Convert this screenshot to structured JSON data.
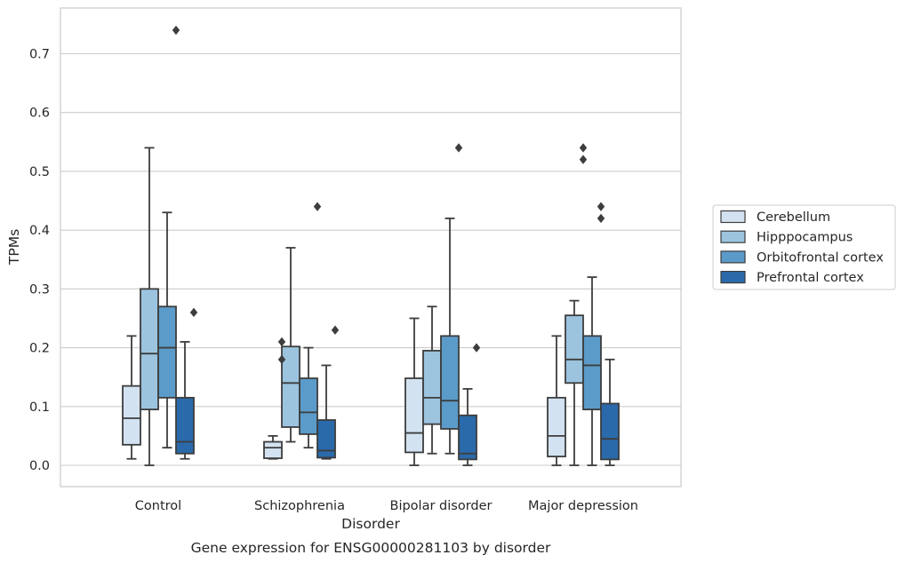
{
  "chart_data": {
    "type": "box",
    "title": "",
    "caption": "Gene expression for ENSG00000281103 by disorder",
    "xlabel": "Disorder",
    "ylabel": "TPMs",
    "ylim": [
      -0.035,
      0.775
    ],
    "yticks": [
      0.0,
      0.1,
      0.2,
      0.3,
      0.4,
      0.5,
      0.6,
      0.7
    ],
    "ytick_labels": [
      "0.0",
      "0.1",
      "0.2",
      "0.3",
      "0.4",
      "0.5",
      "0.6",
      "0.7"
    ],
    "grid": true,
    "legend_position": "right",
    "categories": [
      "Control",
      "Schizophrenia",
      "Bipolar disorder",
      "Major depression"
    ],
    "series": [
      {
        "name": "Cerebellum",
        "color": "#d3e2f1",
        "boxes": [
          {
            "whislo": 0.011,
            "q1": 0.035,
            "med": 0.08,
            "q3": 0.135,
            "whishi": 0.22,
            "fliers": []
          },
          {
            "whislo": 0.011,
            "q1": 0.012,
            "med": 0.03,
            "q3": 0.04,
            "whishi": 0.05,
            "fliers": []
          },
          {
            "whislo": 0.0,
            "q1": 0.022,
            "med": 0.055,
            "q3": 0.148,
            "whishi": 0.25,
            "fliers": []
          },
          {
            "whislo": 0.0,
            "q1": 0.015,
            "med": 0.05,
            "q3": 0.115,
            "whishi": 0.22,
            "fliers": []
          }
        ]
      },
      {
        "name": "Hipppocampus",
        "color": "#9cc4df",
        "boxes": [
          {
            "whislo": 0.0,
            "q1": 0.095,
            "med": 0.19,
            "q3": 0.3,
            "whishi": 0.54,
            "fliers": []
          },
          {
            "whislo": 0.04,
            "q1": 0.065,
            "med": 0.14,
            "q3": 0.202,
            "whishi": 0.37,
            "fliers": []
          },
          {
            "whislo": 0.02,
            "q1": 0.07,
            "med": 0.115,
            "q3": 0.195,
            "whishi": 0.27,
            "fliers": []
          },
          {
            "whislo": 0.0,
            "q1": 0.14,
            "med": 0.18,
            "q3": 0.255,
            "whishi": 0.28,
            "fliers": []
          }
        ]
      },
      {
        "name": "Orbitofrontal cortex",
        "color": "#5b9bc9",
        "boxes": [
          {
            "whislo": 0.03,
            "q1": 0.115,
            "med": 0.2,
            "q3": 0.27,
            "whishi": 0.43,
            "fliers": [
              0.74
            ]
          },
          {
            "whislo": 0.03,
            "q1": 0.053,
            "med": 0.09,
            "q3": 0.148,
            "whishi": 0.2,
            "fliers": [
              0.44
            ]
          },
          {
            "whislo": 0.02,
            "q1": 0.062,
            "med": 0.11,
            "q3": 0.22,
            "whishi": 0.42,
            "fliers": [
              0.54
            ]
          },
          {
            "whislo": 0.0,
            "q1": 0.095,
            "med": 0.17,
            "q3": 0.22,
            "whishi": 0.32,
            "fliers": [
              0.42,
              0.44
            ]
          }
        ]
      },
      {
        "name": "Prefrontal cortex",
        "color": "#2a6aaa",
        "boxes": [
          {
            "whislo": 0.011,
            "q1": 0.02,
            "med": 0.04,
            "q3": 0.115,
            "whishi": 0.21,
            "fliers": [
              0.26
            ]
          },
          {
            "whislo": 0.011,
            "q1": 0.013,
            "med": 0.025,
            "q3": 0.077,
            "whishi": 0.17,
            "fliers": [
              0.23
            ]
          },
          {
            "whislo": 0.0,
            "q1": 0.01,
            "med": 0.02,
            "q3": 0.085,
            "whishi": 0.13,
            "fliers": [
              0.2
            ]
          },
          {
            "whislo": 0.0,
            "q1": 0.01,
            "med": 0.045,
            "q3": 0.105,
            "whishi": 0.18,
            "fliers": []
          }
        ]
      }
    ],
    "extra_fliers": [
      {
        "category": 1,
        "series": 0,
        "values": [
          0.18,
          0.21
        ]
      },
      {
        "category": 3,
        "series": 1,
        "values": [
          0.52,
          0.54
        ]
      }
    ]
  }
}
